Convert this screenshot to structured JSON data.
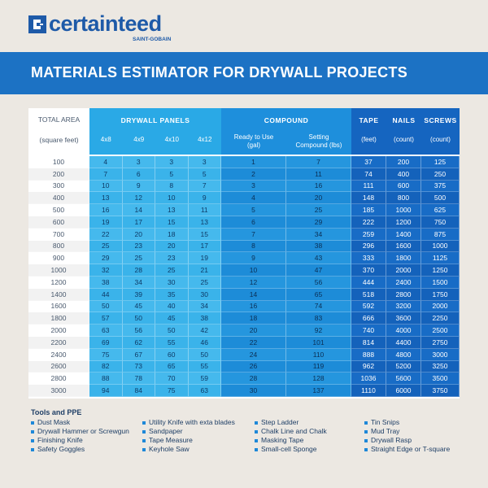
{
  "logo": {
    "name": "certainteed",
    "sub": "SAINT-GOBAIN"
  },
  "banner": {
    "title": "MATERIALS ESTIMATOR FOR DRYWALL PROJECTS"
  },
  "table": {
    "header": {
      "area": "TOTAL AREA",
      "area_unit": "(square feet)",
      "panels": "DRYWALL PANELS",
      "panel_sizes": [
        "4x8",
        "4x9",
        "4x10",
        "4x12"
      ],
      "compound": "COMPOUND",
      "compound_cols": [
        "Ready to Use (gal)",
        "Setting Compound (lbs)"
      ],
      "tape": "TAPE",
      "tape_unit": "(feet)",
      "nails": "NAILS",
      "nails_unit": "(count)",
      "screws": "SCREWS",
      "screws_unit": "(count)"
    },
    "rows": [
      [
        100,
        4,
        3,
        3,
        3,
        1,
        7,
        37,
        200,
        125
      ],
      [
        200,
        7,
        6,
        5,
        5,
        2,
        11,
        74,
        400,
        250
      ],
      [
        300,
        10,
        9,
        8,
        7,
        3,
        16,
        111,
        600,
        375
      ],
      [
        400,
        13,
        12,
        10,
        9,
        4,
        20,
        148,
        800,
        500
      ],
      [
        500,
        16,
        14,
        13,
        11,
        5,
        25,
        185,
        1000,
        625
      ],
      [
        600,
        19,
        17,
        15,
        13,
        6,
        29,
        222,
        1200,
        750
      ],
      [
        700,
        22,
        20,
        18,
        15,
        7,
        34,
        259,
        1400,
        875
      ],
      [
        800,
        25,
        23,
        20,
        17,
        8,
        38,
        296,
        1600,
        1000
      ],
      [
        900,
        29,
        25,
        23,
        19,
        9,
        43,
        333,
        1800,
        1125
      ],
      [
        1000,
        32,
        28,
        25,
        21,
        10,
        47,
        370,
        2000,
        1250
      ],
      [
        1200,
        38,
        34,
        30,
        25,
        12,
        56,
        444,
        2400,
        1500
      ],
      [
        1400,
        44,
        39,
        35,
        30,
        14,
        65,
        518,
        2800,
        1750
      ],
      [
        1600,
        50,
        45,
        40,
        34,
        16,
        74,
        592,
        3200,
        2000
      ],
      [
        1800,
        57,
        50,
        45,
        38,
        18,
        83,
        666,
        3600,
        2250
      ],
      [
        2000,
        63,
        56,
        50,
        42,
        20,
        92,
        740,
        4000,
        2500
      ],
      [
        2200,
        69,
        62,
        55,
        46,
        22,
        101,
        814,
        4400,
        2750
      ],
      [
        2400,
        75,
        67,
        60,
        50,
        24,
        110,
        888,
        4800,
        3000
      ],
      [
        2600,
        82,
        73,
        65,
        55,
        26,
        119,
        962,
        5200,
        3250
      ],
      [
        2800,
        88,
        78,
        70,
        59,
        28,
        128,
        1036,
        5600,
        3500
      ],
      [
        3000,
        94,
        84,
        75,
        63,
        30,
        137,
        1110,
        6000,
        3750
      ]
    ]
  },
  "tools": {
    "title": "Tools and PPE",
    "columns": [
      [
        "Dust Mask",
        "Drywall Hammer or Screwgun",
        "Finishing Knife",
        "Safety Goggles"
      ],
      [
        "Utility Knife with exta blades",
        "Sandpaper",
        "Tape Measure",
        "Keyhole Saw"
      ],
      [
        "Step Ladder",
        "Chalk Line and Chalk",
        "Masking Tape",
        "Small-cell Sponge"
      ],
      [
        "Tin Snips",
        "Mud Tray",
        "Drywall Rasp",
        "Straight Edge or T-square"
      ]
    ]
  }
}
